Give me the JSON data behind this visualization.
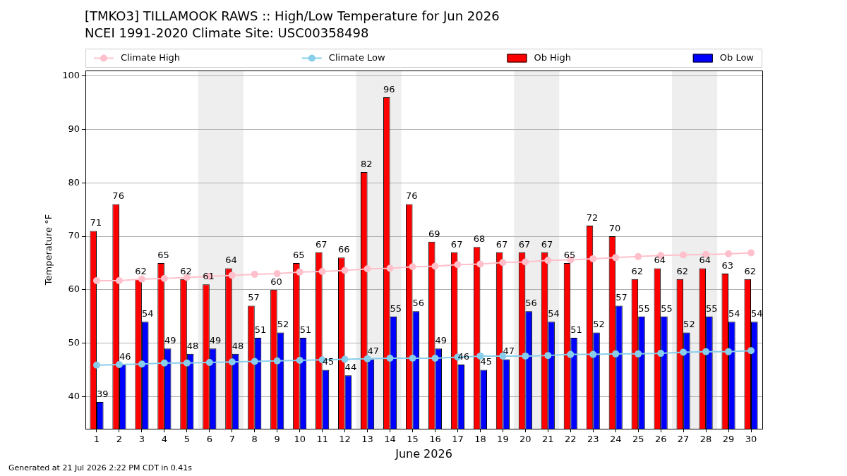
{
  "chart_data": {
    "type": "bar",
    "title": "[TMKO3] TILLAMOOK RAWS :: High/Low Temperature for Jun 2026",
    "subtitle": "NCEI 1991-2020 Climate Site: USC00358498",
    "xlabel": "June 2026",
    "ylabel": "Temperature °F",
    "annotations": [
      "Generated at 21 Jul 2026 2:22 PM CDT in 0.41s"
    ],
    "x": [
      1,
      2,
      3,
      4,
      5,
      6,
      7,
      8,
      9,
      10,
      11,
      12,
      13,
      14,
      15,
      16,
      17,
      18,
      19,
      20,
      21,
      22,
      23,
      24,
      25,
      26,
      27,
      28,
      29,
      30
    ],
    "xlim": [
      0.5,
      30.5
    ],
    "xticks": [
      1,
      2,
      3,
      4,
      5,
      6,
      7,
      8,
      9,
      10,
      11,
      12,
      13,
      14,
      15,
      16,
      17,
      18,
      19,
      20,
      21,
      22,
      23,
      24,
      25,
      26,
      27,
      28,
      29,
      30
    ],
    "ylim": [
      34,
      101
    ],
    "yticks": [
      40,
      50,
      60,
      70,
      80,
      90,
      100
    ],
    "grid": "y",
    "legend": "top",
    "marker": "circle",
    "bands": [
      {
        "axis": "x",
        "from": 5.5,
        "to": 7.5,
        "color": "#eeeeee"
      },
      {
        "axis": "x",
        "from": 12.5,
        "to": 14.5,
        "color": "#eeeeee"
      },
      {
        "axis": "x",
        "from": 19.5,
        "to": 21.5,
        "color": "#eeeeee"
      },
      {
        "axis": "x",
        "from": 26.5,
        "to": 28.5,
        "color": "#eeeeee"
      }
    ],
    "series": [
      {
        "name": "Climate High",
        "type": "line",
        "color": "#ffc0cb",
        "values": [
          61.7,
          61.7,
          62.0,
          62.1,
          62.3,
          62.5,
          62.7,
          62.9,
          63.0,
          63.3,
          63.4,
          63.6,
          63.9,
          64.0,
          64.3,
          64.4,
          64.7,
          64.8,
          65.1,
          65.2,
          65.5,
          65.6,
          65.8,
          66.0,
          66.2,
          66.4,
          66.5,
          66.6,
          66.7,
          66.9
        ]
      },
      {
        "name": "Climate Low",
        "type": "line",
        "color": "#87ceeb",
        "values": [
          45.9,
          46.0,
          46.1,
          46.3,
          46.3,
          46.4,
          46.5,
          46.6,
          46.7,
          46.8,
          46.9,
          47.0,
          47.1,
          47.2,
          47.2,
          47.2,
          47.4,
          47.6,
          47.6,
          47.6,
          47.7,
          47.9,
          47.9,
          48.0,
          48.0,
          48.1,
          48.3,
          48.4,
          48.4,
          48.6
        ]
      },
      {
        "name": "Ob High",
        "color": "#ff0000",
        "values": [
          71,
          76,
          62,
          65,
          62,
          61,
          64,
          57,
          60,
          65,
          67,
          66,
          82,
          96,
          76,
          69,
          67,
          68,
          67,
          67,
          67,
          65,
          72,
          70,
          62,
          64,
          62,
          64,
          63,
          62
        ],
        "value_labels": [
          "71",
          "76",
          "62",
          "65",
          "62",
          "61",
          "64",
          "57",
          "60",
          "65",
          "67",
          "66",
          "82",
          "96",
          "76",
          "69",
          "67",
          "68",
          "67",
          "67",
          "67",
          "65",
          "72",
          "70",
          "62",
          "64",
          "62",
          "64",
          "63",
          "62"
        ]
      },
      {
        "name": "Ob Low",
        "color": "#0000ff",
        "values": [
          39,
          46,
          54,
          49,
          48,
          49,
          48,
          51,
          52,
          51,
          45,
          44,
          47,
          55,
          56,
          49,
          46,
          45,
          47,
          56,
          54,
          51,
          52,
          57,
          55,
          55,
          52,
          55,
          54,
          54
        ],
        "value_labels": [
          "39",
          "46",
          "54",
          "49",
          "48",
          "49",
          "48",
          "51",
          "52",
          "51",
          "45",
          "44",
          "47",
          "55",
          "56",
          "49",
          "46",
          "45",
          "47",
          "56",
          "54",
          "51",
          "52",
          "57",
          "55",
          "55",
          "52",
          "55",
          "54",
          "54"
        ]
      }
    ]
  }
}
